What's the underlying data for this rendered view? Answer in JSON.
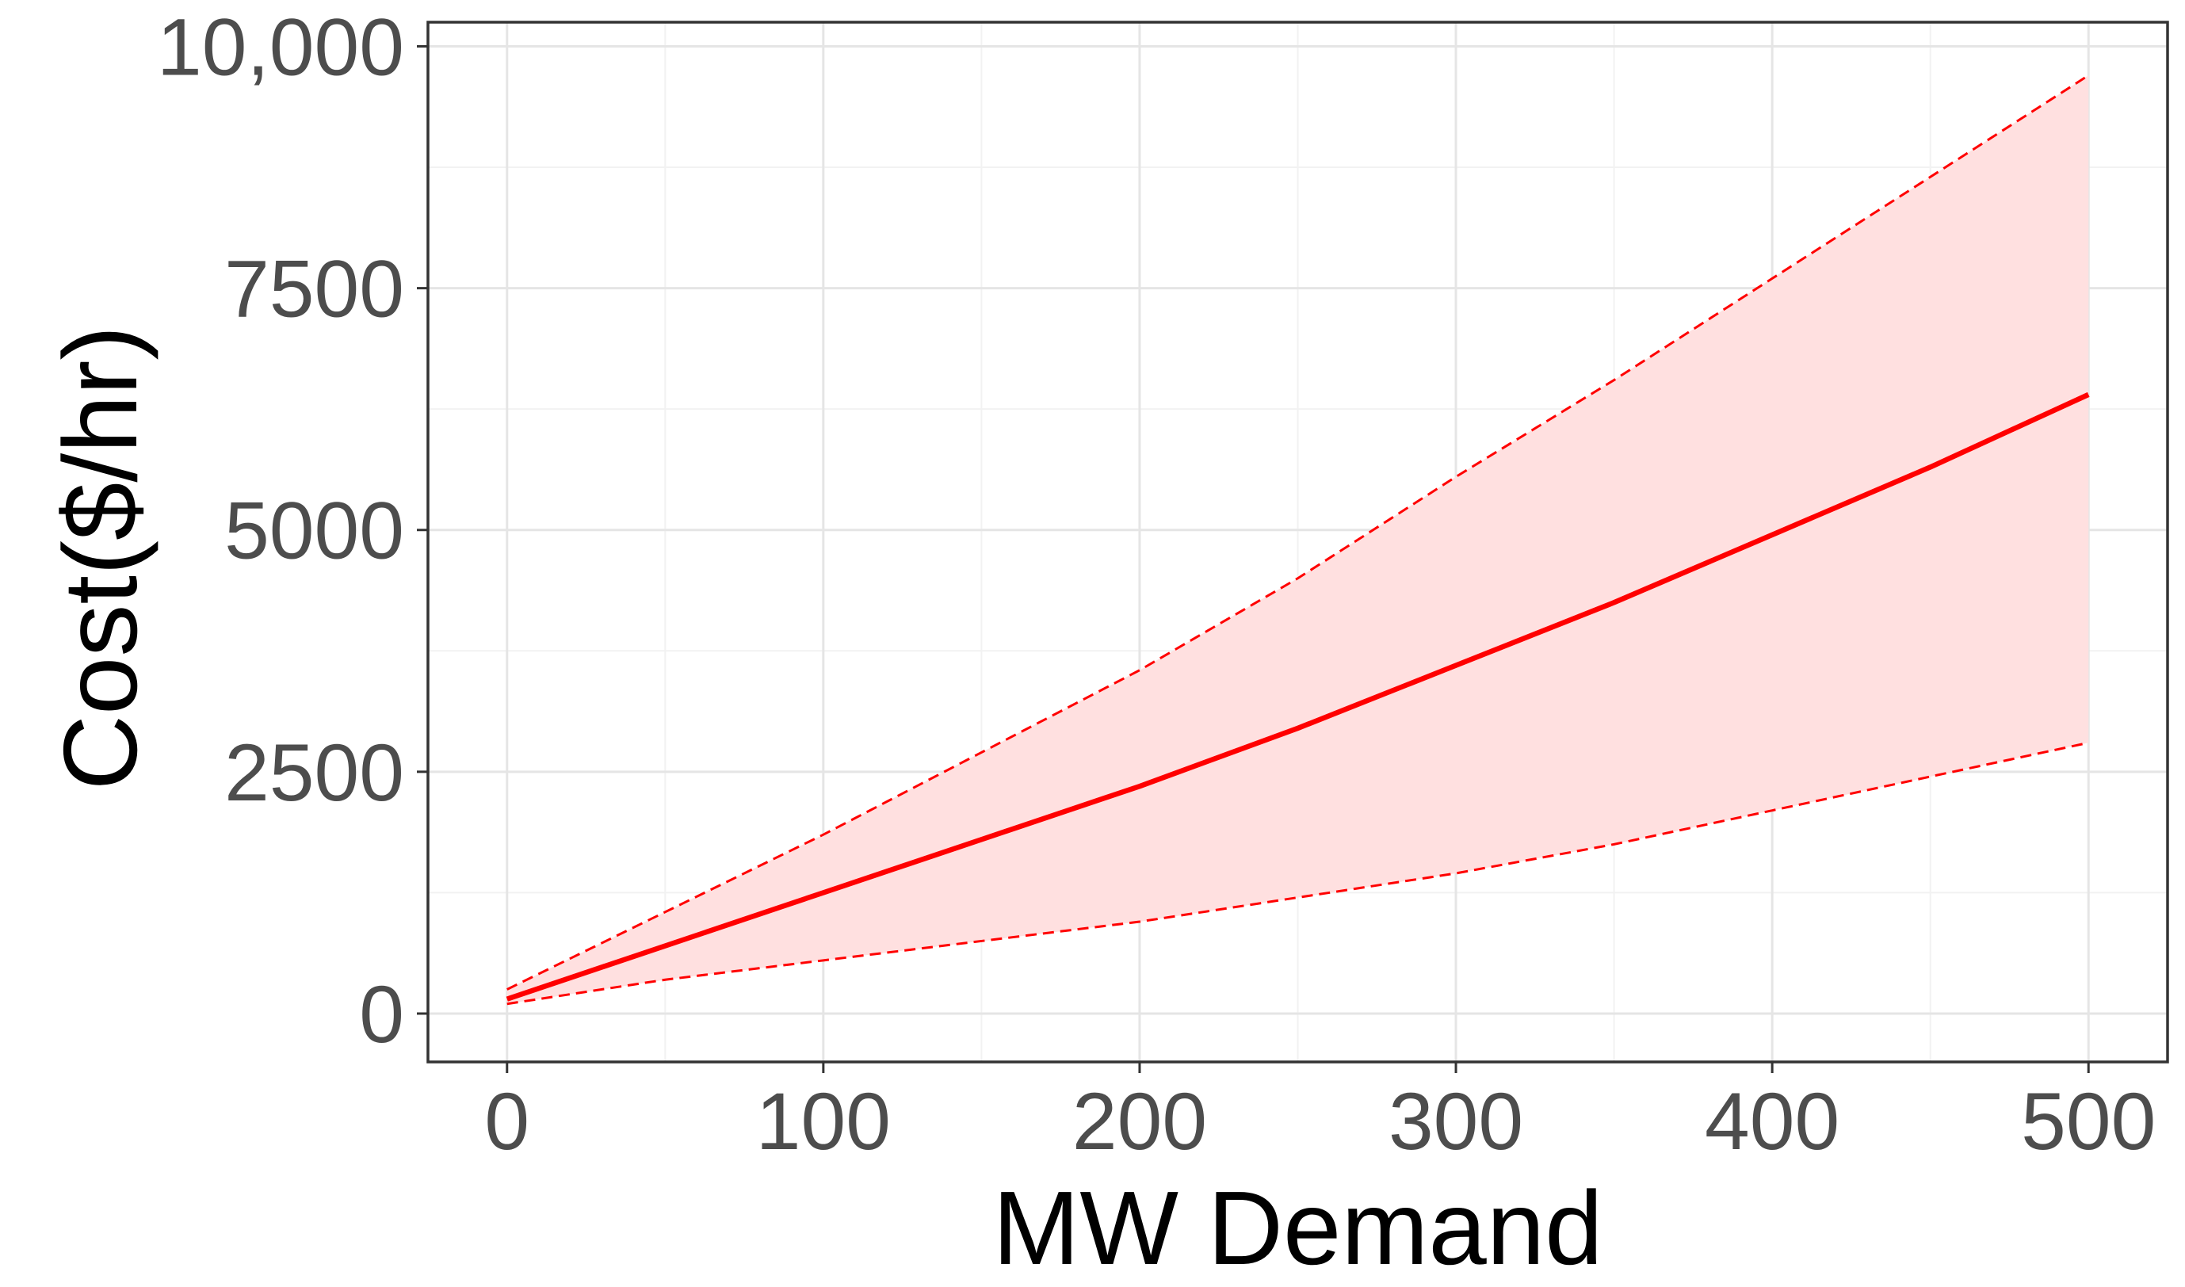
{
  "chart_data": {
    "type": "line",
    "xlabel": "MW Demand",
    "ylabel": "Cost($/hr)",
    "xlim": [
      -25,
      525
    ],
    "ylim": [
      -500,
      10250
    ],
    "x_ticks": [
      0,
      100,
      200,
      300,
      400,
      500
    ],
    "x_tick_labels": [
      "0",
      "100",
      "200",
      "300",
      "400",
      "500"
    ],
    "y_ticks": [
      0,
      2500,
      5000,
      7500,
      10000
    ],
    "y_tick_labels": [
      "0",
      "2500",
      "5000",
      "7500",
      "10,000"
    ],
    "grid": true,
    "legend": "none",
    "colors": {
      "line": "#ff0000",
      "band": "#ffe0e0",
      "bound": "#ff0000"
    },
    "x": [
      0,
      50,
      100,
      150,
      200,
      250,
      300,
      350,
      400,
      450,
      500
    ],
    "series": [
      {
        "values": [
          150,
          700,
          1250,
          1800,
          2350,
          2950,
          3600,
          4250,
          4950,
          5650,
          6400
        ],
        "style": "solid"
      },
      {
        "values": [
          250,
          1050,
          1850,
          2700,
          3550,
          4500,
          5550,
          6550,
          7600,
          8650,
          9700
        ],
        "style": "dashed"
      },
      {
        "values": [
          100,
          350,
          550,
          750,
          950,
          1200,
          1450,
          1750,
          2100,
          2450,
          2800
        ],
        "style": "dashed"
      }
    ]
  }
}
